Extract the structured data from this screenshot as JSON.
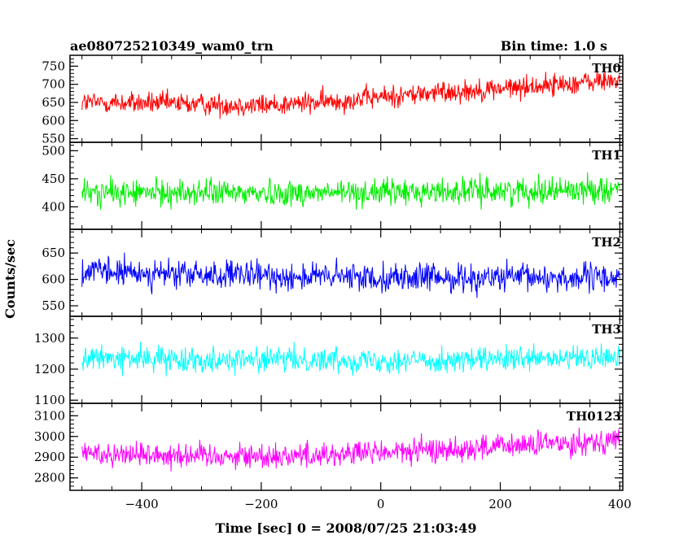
{
  "header": {
    "left_title": "ae080725210349_wam0_trn",
    "right_title": "Bin time: 1.0 s"
  },
  "chart_data": {
    "type": "line",
    "x_axis": {
      "label": "Time [sec] 0 = 2008/07/25 21:03:49",
      "range": [
        -520,
        405
      ],
      "ticks": [
        -400,
        -200,
        0,
        200,
        400
      ],
      "tick_labels": [
        "−400",
        "−200",
        "0",
        "200",
        "400"
      ]
    },
    "y_label": "Counts/sec",
    "x_data_range": [
      -500,
      400
    ],
    "bin_time_s": 1.0,
    "grid": false,
    "panels": [
      {
        "name": "TH0",
        "color": "#ff0000",
        "y_range": [
          540,
          780
        ],
        "ticks": [
          550,
          600,
          650,
          700,
          750
        ],
        "trend": {
          "x": [
            -500,
            -400,
            -300,
            -200,
            -100,
            0,
            100,
            200,
            300,
            400
          ],
          "y": [
            650,
            648,
            645,
            642,
            650,
            665,
            678,
            688,
            700,
            712
          ]
        },
        "noise_amplitude": 55
      },
      {
        "name": "TH1",
        "color": "#00ee00",
        "y_range": [
          360,
          515
        ],
        "ticks": [
          400,
          450,
          500
        ],
        "trend": {
          "x": [
            -500,
            -300,
            -100,
            100,
            300,
            400
          ],
          "y": [
            425,
            425,
            425,
            427,
            430,
            432
          ]
        },
        "noise_amplitude": 42
      },
      {
        "name": "TH2",
        "color": "#0000ff",
        "y_range": [
          530,
          695
        ],
        "ticks": [
          550,
          600,
          650
        ],
        "trend": {
          "x": [
            -500,
            -300,
            -100,
            100,
            300,
            400
          ],
          "y": [
            615,
            608,
            605,
            603,
            603,
            603
          ]
        },
        "noise_amplitude": 48
      },
      {
        "name": "TH3",
        "color": "#00ffff",
        "y_range": [
          1090,
          1370
        ],
        "ticks": [
          1100,
          1200,
          1300
        ],
        "trend": {
          "x": [
            -500,
            -300,
            -100,
            100,
            300,
            400
          ],
          "y": [
            1235,
            1232,
            1230,
            1228,
            1232,
            1238
          ]
        },
        "noise_amplitude": 70
      },
      {
        "name": "TH0123",
        "color": "#ff00ff",
        "y_range": [
          2740,
          3160
        ],
        "ticks": [
          2800,
          2900,
          3000,
          3100
        ],
        "trend": {
          "x": [
            -500,
            -400,
            -300,
            -200,
            -100,
            0,
            100,
            200,
            300,
            400
          ],
          "y": [
            2920,
            2915,
            2910,
            2905,
            2912,
            2922,
            2935,
            2950,
            2968,
            2985
          ]
        },
        "noise_amplitude": 110
      }
    ]
  }
}
